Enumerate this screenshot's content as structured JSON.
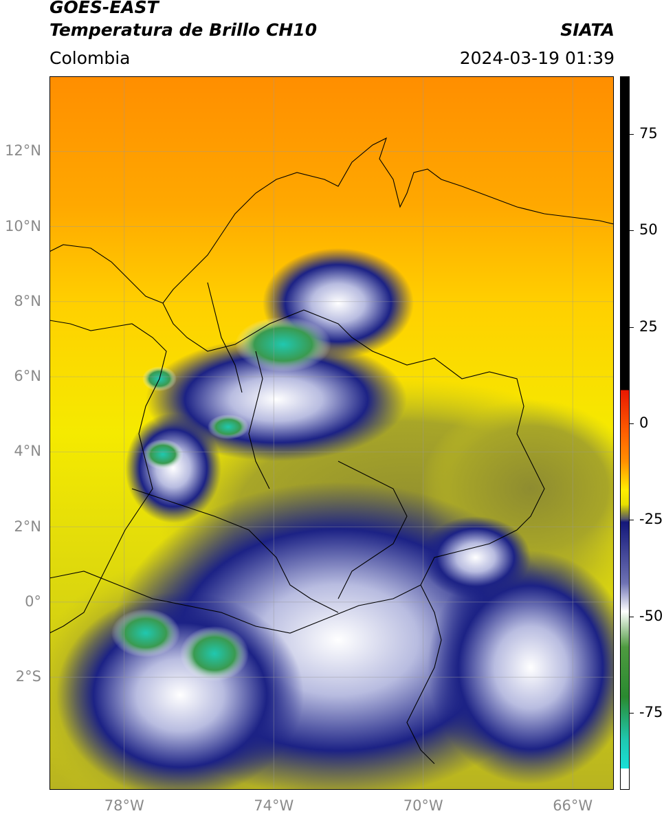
{
  "header": {
    "satellite": "GOES-EAST",
    "product": "Temperatura de Brillo CH10",
    "source": "SIATA",
    "region": "Colombia",
    "datetime": "2024-03-19 01:39"
  },
  "map": {
    "extent": {
      "lon": [
        -80,
        -64.9
      ],
      "lat": [
        -5.0,
        14.0
      ]
    },
    "lat_ticks": [
      {
        "value": 12,
        "label": "12°N"
      },
      {
        "value": 10,
        "label": "10°N"
      },
      {
        "value": 8,
        "label": "8°N"
      },
      {
        "value": 6,
        "label": "6°N"
      },
      {
        "value": 4,
        "label": "4°N"
      },
      {
        "value": 2,
        "label": "2°N"
      },
      {
        "value": 0,
        "label": "0°"
      },
      {
        "value": -2,
        "label": "2°S"
      }
    ],
    "lon_ticks": [
      {
        "value": -78,
        "label": "78°W"
      },
      {
        "value": -74,
        "label": "74°W"
      },
      {
        "value": -70,
        "label": "70°W"
      },
      {
        "value": -66,
        "label": "66°W"
      }
    ],
    "gridlines": true
  },
  "colorbar": {
    "range": [
      -95,
      90
    ],
    "ticks": [
      {
        "value": 75,
        "label": "75"
      },
      {
        "value": 50,
        "label": "50"
      },
      {
        "value": 25,
        "label": "25"
      },
      {
        "value": 0,
        "label": "0"
      },
      {
        "value": -25,
        "label": "-25"
      },
      {
        "value": -50,
        "label": "-50"
      },
      {
        "value": -75,
        "label": "-75"
      }
    ],
    "colors": {
      "black": "#000000",
      "red": "#e81800",
      "orange": "#ff9000",
      "yellow": "#ffee00",
      "olive": "#9c9a2a",
      "navy": "#14187a",
      "white": "#ffffff",
      "green": "#2a8a30",
      "cyan": "#18e0d8"
    }
  }
}
